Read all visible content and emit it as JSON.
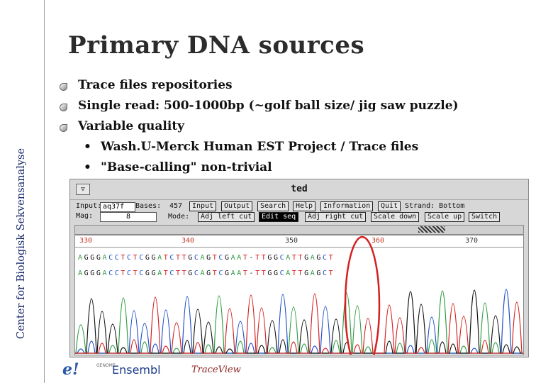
{
  "sidebar": {
    "vertical_text": "Center for Biologisk Sekvensanalyse"
  },
  "slide": {
    "title": "Primary DNA sources",
    "bullets": [
      "Trace files repositories",
      "Single read: 500-1000bp (~golf ball size/ jig saw puzzle)",
      "Variable quality"
    ],
    "subbullets": [
      "Wash.U-Merck Human EST Project / Trace files",
      "\"Base-calling\" non-trivial"
    ],
    "subbullet_marker": "•"
  },
  "trace_window": {
    "title": "ted",
    "menu_glyph": "▽",
    "input_label": "Input:",
    "input_value": "aq37f",
    "bases_label": "Bases:",
    "bases_value": "457",
    "mag_label": "Mag:",
    "mag_value": "8",
    "mode_label": "Mode:",
    "strand_label": "Strand: Bottom",
    "buttons_row1": [
      "Input",
      "Output",
      "Search",
      "Help",
      "Information",
      "Quit"
    ],
    "buttons_row2": [
      "Adj left cut",
      "Edit seq",
      "Adj right cut",
      "Scale down",
      "Scale up",
      "Switch"
    ],
    "active_button": "Edit seq",
    "position_ticks": [
      "330",
      "340",
      "350",
      "360",
      "370"
    ],
    "seq_top": "AGGGACCTCTCGGATCTTGCAGTCGAAT-TTGGCATTGAGCT",
    "seq_bottom": "AGGGACCTCTCGGATCTTGCAGTCGAAT-TTGGCATTGAGCT",
    "colors": {
      "A": "#2e9e44",
      "C": "#1f4fc8",
      "G": "#111111",
      "T": "#d42020",
      "highlight_circle": "#d42020"
    }
  },
  "footer": {
    "logo_mark": "e!",
    "logo_small": "GENOME",
    "logo_text": "Ensembl",
    "traceview": "TraceView"
  }
}
